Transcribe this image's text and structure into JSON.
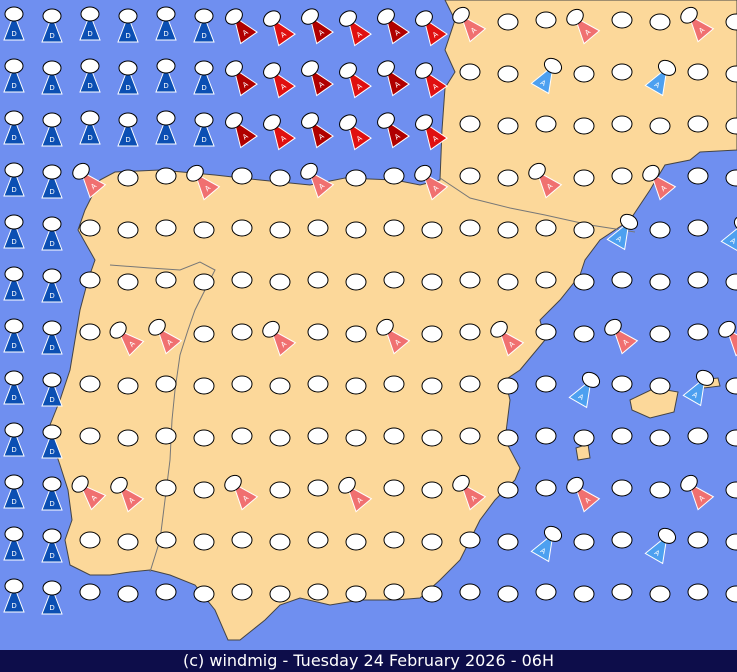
{
  "footer": {
    "text": "(c) windmig - Tuesday 24 February 2026 - 06H"
  },
  "map": {
    "sea_color": "#6f8ff0",
    "land_color": "#fcd89a",
    "border_color": "#777777",
    "calm_marker": {
      "fill": "#ffffff",
      "stroke": "#000000"
    },
    "wind_colors": {
      "dark_blue": "#0b4fb3",
      "light_blue": "#4da0f0",
      "salmon": "#f07070",
      "red": "#e01010",
      "dark_red": "#b00000"
    },
    "rows": [
      {
        "y": 18,
        "cells": "DDDDDA RRRRRRR ..S..."
      },
      {
        "y": 40,
        "cells": "DDDAAB RRRRRRRR SSS.S."
      }
    ]
  }
}
